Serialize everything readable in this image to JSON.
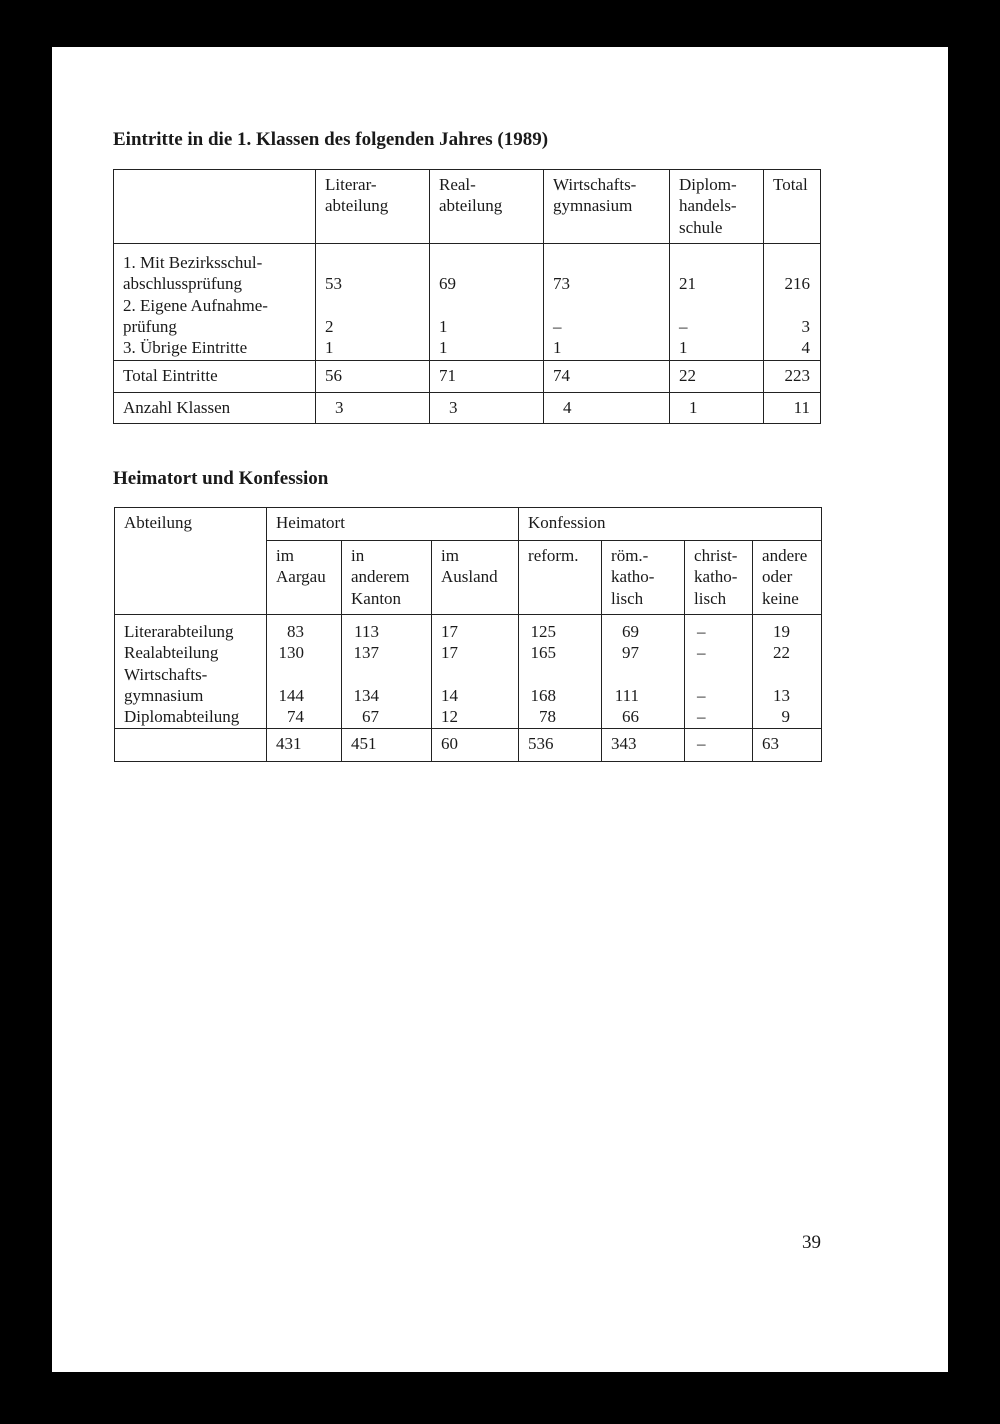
{
  "table1": {
    "title": "Eintritte in die 1. Klassen des folgenden Jahres (1989)",
    "columns": [
      "Literar-\nabteilung",
      "Real-\nabteilung",
      "Wirtschafts-\ngymnasium",
      "Diplom-\nhandels-\nschule",
      "Total"
    ],
    "rows": [
      {
        "label_lines": [
          "1. Mit Bezirksschul-",
          "   abschlussprüfung"
        ],
        "values": [
          "53",
          "69",
          "73",
          "21",
          "216"
        ]
      },
      {
        "label_lines": [
          "2. Eigene Aufnahme-",
          "   prüfung"
        ],
        "values": [
          "2",
          "1",
          "–",
          "–",
          "3"
        ]
      },
      {
        "label_lines": [
          "3. Übrige Eintritte"
        ],
        "values": [
          "1",
          "1",
          "1",
          "1",
          "4"
        ]
      }
    ],
    "total_row": {
      "label": "Total Eintritte",
      "values": [
        "56",
        "71",
        "74",
        "22",
        "223"
      ]
    },
    "classes_row": {
      "label": "Anzahl Klassen",
      "values": [
        "3",
        "3",
        "4",
        "1",
        "11"
      ]
    }
  },
  "table2": {
    "title": "Heimatort und Konfession",
    "corner_label": "Abteilung",
    "group_heimatort": "Heimatort",
    "group_konfession": "Konfession",
    "columns": [
      "im\nAargau",
      "in\nanderem\nKanton",
      "im\nAusland",
      "reform.",
      "röm.-\nkatho-\nlisch",
      "christ-\nkatho-\nlisch",
      "andere\noder\nkeine"
    ],
    "rows": [
      {
        "label_lines": [
          "Literarabteilung"
        ],
        "values": [
          "83",
          "113",
          "17",
          "125",
          "69",
          "–",
          "19"
        ]
      },
      {
        "label_lines": [
          "Realabteilung"
        ],
        "values": [
          "130",
          "137",
          "17",
          "165",
          "97",
          "–",
          "22"
        ]
      },
      {
        "label_lines": [
          "Wirtschafts-",
          "gymnasium"
        ],
        "values": [
          "144",
          "134",
          "14",
          "168",
          "111",
          "–",
          "13"
        ]
      },
      {
        "label_lines": [
          "Diplomabteilung"
        ],
        "values": [
          "74",
          "67",
          "12",
          "78",
          "66",
          "–",
          "9"
        ]
      }
    ],
    "total_row": {
      "label": "",
      "values": [
        "431",
        "451",
        "60",
        "536",
        "343",
        "–",
        "63"
      ]
    }
  },
  "page_number": "39"
}
